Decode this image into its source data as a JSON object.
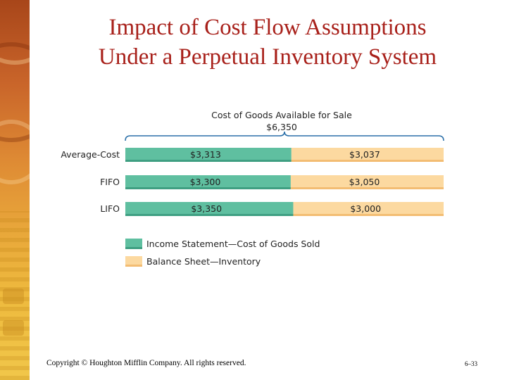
{
  "slide": {
    "title_line1": "Impact of Cost Flow Assumptions",
    "title_line2": "Under a Perpetual Inventory System",
    "copyright": "Copyright © Houghton Mifflin Company.  All rights reserved.",
    "page_number": "6–33"
  },
  "colors": {
    "title": "#a8201a",
    "cogs": "#5fbfa0",
    "inventory": "#fcd9a0"
  },
  "chart_data": {
    "type": "bar",
    "stacked": true,
    "orientation": "horizontal",
    "header_line1": "Cost of Goods Available for Sale",
    "header_line2": "$6,350",
    "total": 6350,
    "categories": [
      "Average-Cost",
      "FIFO",
      "LIFO"
    ],
    "series": [
      {
        "name": "Income Statement—Cost of Goods Sold",
        "values": [
          3313,
          3300,
          3350
        ],
        "labels": [
          "$3,313",
          "$3,300",
          "$3,350"
        ],
        "color": "#5fbfa0"
      },
      {
        "name": "Balance Sheet—Inventory",
        "values": [
          3037,
          3050,
          3000
        ],
        "labels": [
          "$3,037",
          "$3,050",
          "$3,000"
        ],
        "color": "#fcd9a0"
      }
    ],
    "legend_position": "bottom",
    "grid": false
  }
}
